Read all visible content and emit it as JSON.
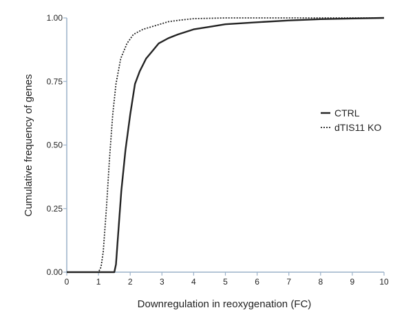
{
  "chart_data": {
    "type": "line",
    "title": "",
    "xlabel": "Downregulation in reoxygenation (FC)",
    "ylabel": "Cumulative frequency of genes",
    "xlim": [
      0,
      10
    ],
    "ylim": [
      0,
      1
    ],
    "x_ticks": [
      "0",
      "1",
      "2",
      "3",
      "4",
      "5",
      "6",
      "7",
      "8",
      "9",
      "10"
    ],
    "y_ticks": [
      "0.00",
      "0.25",
      "0.50",
      "0.75",
      "1.00"
    ],
    "grid": false,
    "legend_position": "right-middle",
    "series": [
      {
        "name": "CTRL",
        "style": "solid",
        "color": "#222222",
        "x": [
          0,
          1.5,
          1.55,
          1.62,
          1.72,
          1.85,
          2.0,
          2.15,
          2.3,
          2.5,
          2.7,
          2.9,
          3.2,
          3.5,
          4.0,
          4.5,
          5.0,
          6.0,
          7.0,
          8.0,
          10.0
        ],
        "y": [
          0,
          0,
          0.03,
          0.15,
          0.32,
          0.48,
          0.62,
          0.74,
          0.79,
          0.84,
          0.87,
          0.9,
          0.92,
          0.935,
          0.955,
          0.965,
          0.975,
          0.983,
          0.99,
          0.995,
          1.0
        ]
      },
      {
        "name": "dTIS11 KO",
        "style": "dotted",
        "color": "#222222",
        "x": [
          0,
          1.0,
          1.08,
          1.15,
          1.25,
          1.35,
          1.45,
          1.55,
          1.7,
          1.9,
          2.1,
          2.4,
          2.8,
          3.2,
          3.6,
          4.0,
          5.0,
          10.0
        ],
        "y": [
          0,
          0,
          0.02,
          0.08,
          0.25,
          0.45,
          0.62,
          0.74,
          0.84,
          0.9,
          0.935,
          0.955,
          0.97,
          0.985,
          0.992,
          0.997,
          1.0,
          1.0
        ]
      }
    ]
  }
}
